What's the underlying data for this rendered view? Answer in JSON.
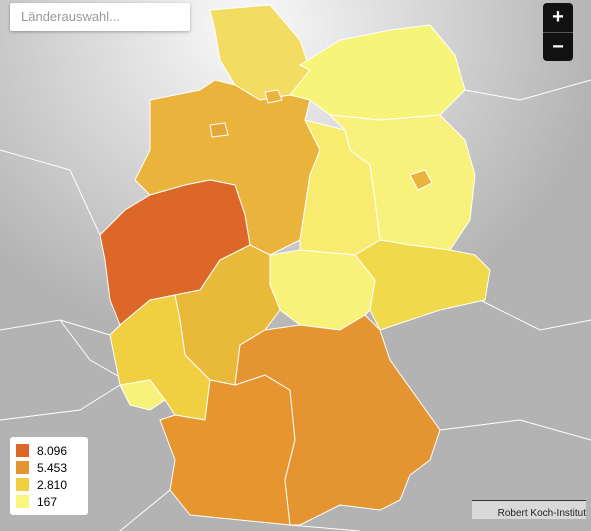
{
  "search": {
    "placeholder": "Länderauswahl..."
  },
  "zoom": {
    "in": "+",
    "out": "−"
  },
  "legend": [
    {
      "label": "8.096",
      "color": "#dd6728"
    },
    {
      "label": "5.453",
      "color": "#e59432"
    },
    {
      "label": "2.810",
      "color": "#f0d040"
    },
    {
      "label": "167",
      "color": "#f8f67c"
    }
  ],
  "attribution": "Robert Koch-Institut"
}
